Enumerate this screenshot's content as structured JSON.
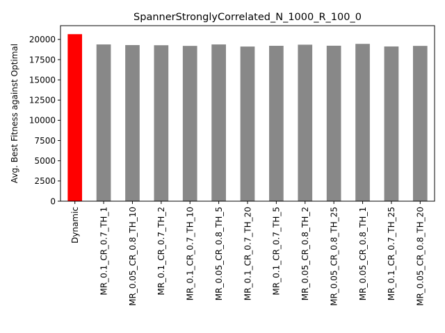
{
  "chart_data": {
    "type": "bar",
    "title": "SpannerStronglyCorrelated_N_1000_R_100_0",
    "xlabel": "",
    "ylabel": "Avg. Best Fitness against Optimal",
    "ylim": [
      0,
      21700
    ],
    "yticks": [
      0,
      2500,
      5000,
      7500,
      10000,
      12500,
      15000,
      17500,
      20000
    ],
    "grid": false,
    "categories": [
      "Dynamic",
      "MR_0.1_CR_0.7_TH_1",
      "MR_0.05_CR_0.8_TH_10",
      "MR_0.1_CR_0.7_TH_2",
      "MR_0.1_CR_0.7_TH_10",
      "MR_0.05_CR_0.8_TH_5",
      "MR_0.1_CR_0.7_TH_20",
      "MR_0.1_CR_0.7_TH_5",
      "MR_0.05_CR_0.8_TH_2",
      "MR_0.05_CR_0.8_TH_25",
      "MR_0.05_CR_0.8_TH_1",
      "MR_0.1_CR_0.7_TH_25",
      "MR_0.05_CR_0.8_TH_20"
    ],
    "values": [
      20650,
      19380,
      19300,
      19280,
      19200,
      19380,
      19120,
      19210,
      19350,
      19220,
      19450,
      19130,
      19200
    ],
    "colors": [
      "#ff0000",
      "#888888",
      "#888888",
      "#888888",
      "#888888",
      "#888888",
      "#888888",
      "#888888",
      "#888888",
      "#888888",
      "#888888",
      "#888888",
      "#888888"
    ]
  }
}
